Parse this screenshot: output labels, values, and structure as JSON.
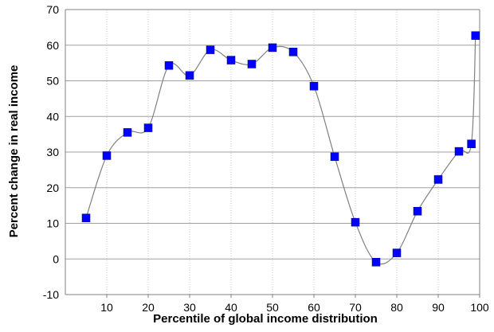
{
  "chart_data": {
    "type": "line",
    "title": "",
    "xlabel": "Percentile of global income distribution",
    "ylabel": "Percent change in real income",
    "xlim": [
      0,
      100
    ],
    "ylim": [
      -10,
      70
    ],
    "x_ticks": [
      10,
      20,
      30,
      40,
      50,
      60,
      70,
      80,
      90,
      100
    ],
    "y_ticks": [
      -10,
      0,
      10,
      20,
      30,
      40,
      50,
      60,
      70
    ],
    "grid": {
      "horizontal": true,
      "vertical": true
    },
    "legend": "none",
    "colors": {
      "line": "#808080",
      "marker": "#0000ff",
      "grid_major": "#a0a0a0",
      "grid_minor": "#cccccc"
    },
    "series": [
      {
        "x": [
          5,
          10,
          15,
          20,
          25,
          30,
          35,
          40,
          45,
          50,
          55,
          60,
          65,
          70,
          75,
          80,
          85,
          90,
          95,
          98,
          99
        ],
        "y": [
          11.5,
          29,
          35.5,
          36.8,
          54.3,
          51.5,
          58.7,
          55.8,
          54.7,
          59.3,
          58.1,
          48.5,
          28.7,
          10.3,
          -0.9,
          1.7,
          13.4,
          22.3,
          30.2,
          32.3,
          62.7
        ]
      }
    ]
  }
}
